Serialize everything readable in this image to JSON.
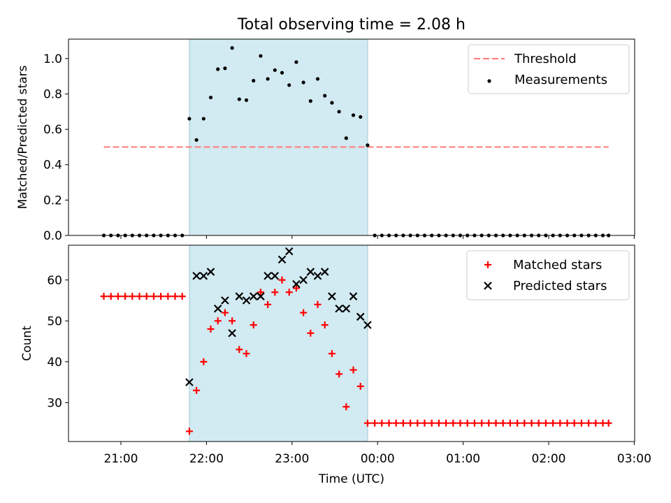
{
  "chart_data": [
    {
      "type": "scatter",
      "title": "Total observing time = 2.08 h",
      "xlabel": "",
      "ylabel": "Matched/Predicted stars",
      "ylim": [
        0.0,
        1.11
      ],
      "yticks": [
        "0.0",
        "0.2",
        "0.4",
        "0.6",
        "0.8",
        "1.0"
      ],
      "grid": false,
      "legend_position": "top-right",
      "shaded_interval": {
        "start": "21:48",
        "end": "23:53",
        "color": "#add8e6"
      },
      "series": [
        {
          "name": "Threshold",
          "style": "dashed-line",
          "color": "#ff7f7f",
          "x": [
            "20:48",
            "02:42"
          ],
          "y": [
            0.5,
            0.5
          ]
        },
        {
          "name": "Measurements",
          "style": "dot",
          "color": "#000000",
          "x": [
            "20:48",
            "20:53",
            "20:58",
            "21:03",
            "21:08",
            "21:13",
            "21:18",
            "21:23",
            "21:28",
            "21:33",
            "21:38",
            "21:43",
            "21:48",
            "21:53",
            "21:58",
            "22:03",
            "22:08",
            "22:13",
            "22:18",
            "22:23",
            "22:28",
            "22:33",
            "22:38",
            "22:43",
            "22:48",
            "22:53",
            "22:58",
            "23:03",
            "23:08",
            "23:13",
            "23:18",
            "23:23",
            "23:28",
            "23:33",
            "23:38",
            "23:43",
            "23:48",
            "23:53",
            "23:58",
            "00:03",
            "00:08",
            "00:13",
            "00:18",
            "00:23",
            "00:28",
            "00:33",
            "00:38",
            "00:43",
            "00:48",
            "00:53",
            "00:58",
            "01:03",
            "01:08",
            "01:13",
            "01:18",
            "01:23",
            "01:28",
            "01:33",
            "01:38",
            "01:43",
            "01:48",
            "01:53",
            "01:58",
            "02:03",
            "02:08",
            "02:13",
            "02:18",
            "02:23",
            "02:28",
            "02:33",
            "02:38",
            "02:42"
          ],
          "y": [
            0,
            0,
            0,
            0,
            0,
            0,
            0,
            0,
            0,
            0,
            0,
            0,
            0.66,
            0.54,
            0.66,
            0.78,
            0.94,
            0.945,
            1.06,
            0.77,
            0.765,
            0.875,
            1.015,
            0.885,
            0.935,
            0.92,
            0.85,
            0.98,
            0.865,
            0.76,
            0.885,
            0.79,
            0.75,
            0.7,
            0.55,
            0.68,
            0.67,
            0.51,
            0,
            0,
            0,
            0,
            0,
            0,
            0,
            0,
            0,
            0,
            0,
            0,
            0,
            0,
            0,
            0,
            0,
            0,
            0,
            0,
            0,
            0,
            0,
            0,
            0,
            0,
            0,
            0,
            0,
            0,
            0,
            0,
            0,
            0
          ]
        }
      ]
    },
    {
      "type": "scatter",
      "title": "",
      "xlabel": "Time (UTC)",
      "ylabel": "Count",
      "ylim": [
        20.5,
        68.5
      ],
      "yticks": [
        "30",
        "40",
        "50",
        "60"
      ],
      "xticks": [
        "21:00",
        "22:00",
        "23:00",
        "00:00",
        "01:00",
        "02:00",
        "03:00"
      ],
      "grid": false,
      "legend_position": "top-right",
      "shaded_interval": {
        "start": "21:48",
        "end": "23:53",
        "color": "#add8e6"
      },
      "series": [
        {
          "name": "Matched stars",
          "style": "plus",
          "color": "#ff0000",
          "x": [
            "20:48",
            "20:53",
            "20:58",
            "21:03",
            "21:08",
            "21:13",
            "21:18",
            "21:23",
            "21:28",
            "21:33",
            "21:38",
            "21:43",
            "21:48",
            "21:53",
            "21:58",
            "22:03",
            "22:08",
            "22:13",
            "22:18",
            "22:23",
            "22:28",
            "22:33",
            "22:38",
            "22:43",
            "22:48",
            "22:53",
            "22:58",
            "23:03",
            "23:08",
            "23:13",
            "23:18",
            "23:23",
            "23:28",
            "23:33",
            "23:38",
            "23:43",
            "23:48",
            "23:53",
            "23:58",
            "00:03",
            "00:08",
            "00:13",
            "00:18",
            "00:23",
            "00:28",
            "00:33",
            "00:38",
            "00:43",
            "00:48",
            "00:53",
            "00:58",
            "01:03",
            "01:08",
            "01:13",
            "01:18",
            "01:23",
            "01:28",
            "01:33",
            "01:38",
            "01:43",
            "01:48",
            "01:53",
            "01:58",
            "02:03",
            "02:08",
            "02:13",
            "02:18",
            "02:23",
            "02:28",
            "02:33",
            "02:38",
            "02:42"
          ],
          "y": [
            56,
            56,
            56,
            56,
            56,
            56,
            56,
            56,
            56,
            56,
            56,
            56,
            23,
            33,
            40,
            48,
            50,
            52,
            50,
            43,
            42,
            49,
            57,
            54,
            57,
            60,
            57,
            58,
            52,
            47,
            54,
            49,
            42,
            37,
            29,
            38,
            34,
            25,
            25,
            25,
            25,
            25,
            25,
            25,
            25,
            25,
            25,
            25,
            25,
            25,
            25,
            25,
            25,
            25,
            25,
            25,
            25,
            25,
            25,
            25,
            25,
            25,
            25,
            25,
            25,
            25,
            25,
            25,
            25,
            25,
            25,
            25
          ]
        },
        {
          "name": "Predicted stars",
          "style": "x",
          "color": "#000000",
          "x": [
            "21:48",
            "21:53",
            "21:58",
            "22:03",
            "22:08",
            "22:13",
            "22:18",
            "22:23",
            "22:28",
            "22:33",
            "22:38",
            "22:43",
            "22:48",
            "22:53",
            "22:58",
            "23:03",
            "23:08",
            "23:13",
            "23:18",
            "23:23",
            "23:28",
            "23:33",
            "23:38",
            "23:43",
            "23:48",
            "23:53"
          ],
          "y": [
            35,
            61,
            61,
            62,
            53,
            55,
            47,
            56,
            55,
            56,
            56,
            61,
            61,
            65,
            67,
            59,
            60,
            62,
            61,
            62,
            56,
            53,
            53,
            56,
            51,
            49
          ]
        }
      ]
    }
  ]
}
